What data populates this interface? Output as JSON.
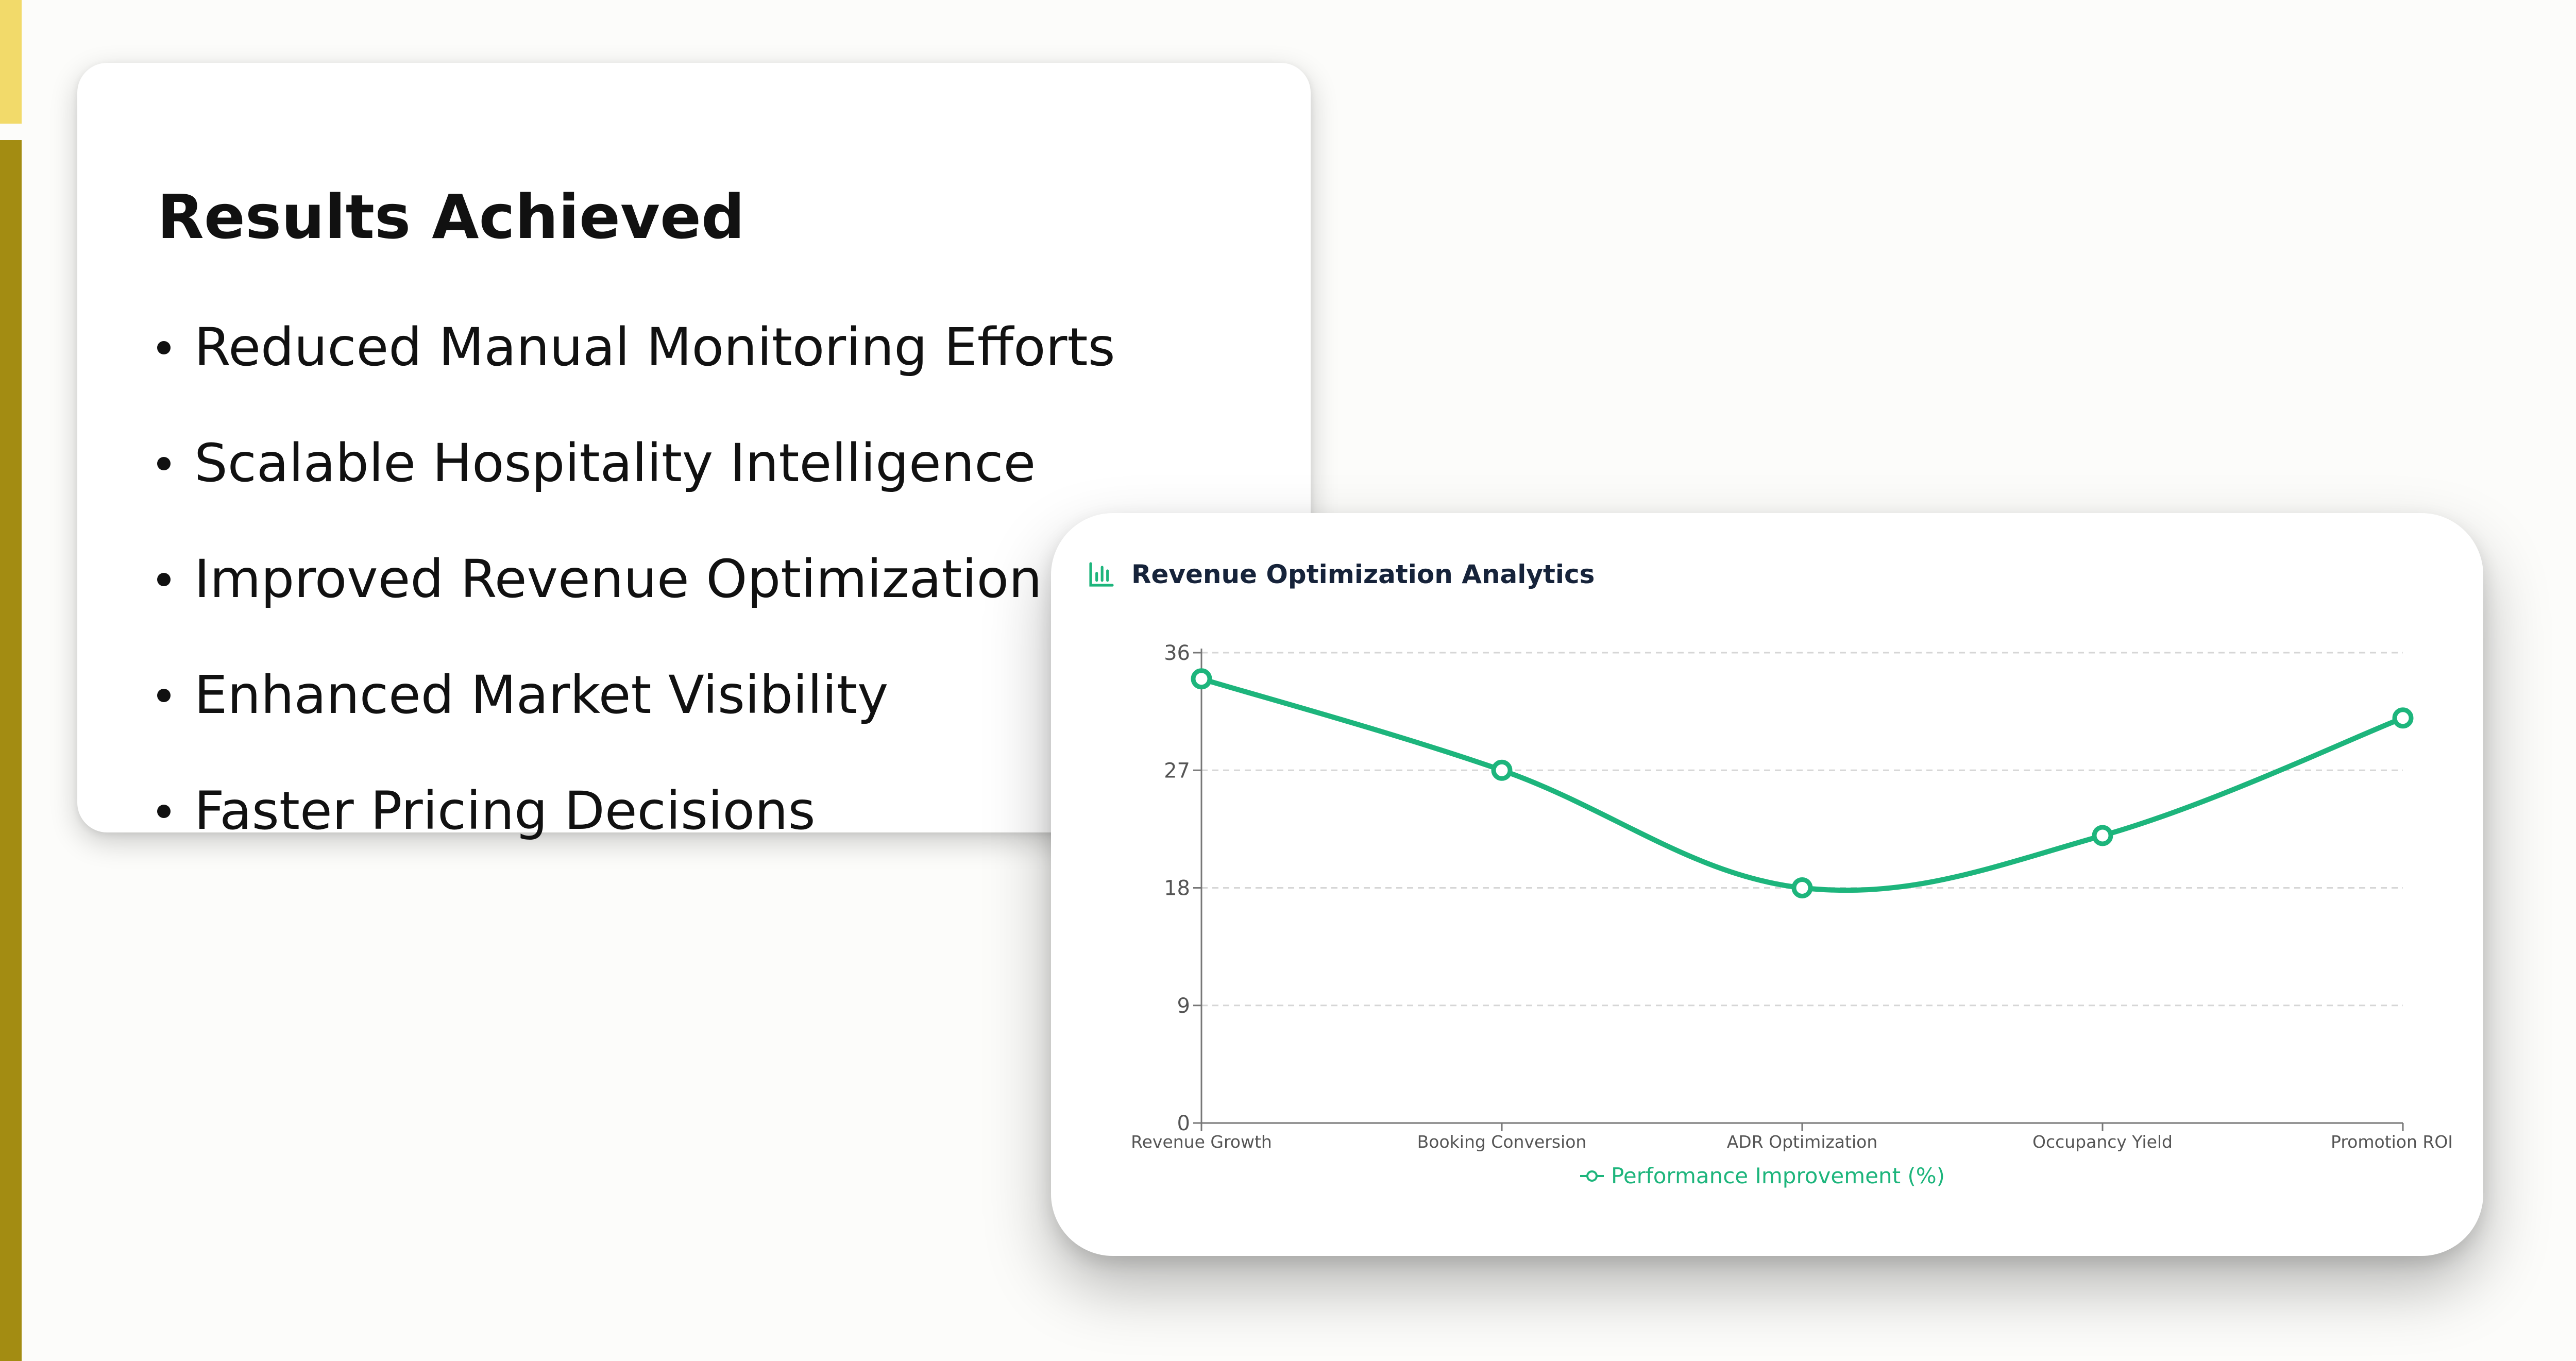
{
  "colors": {
    "accent_yellow": "#f2da6a",
    "accent_olive": "#a38c12",
    "series_green": "#1db57c",
    "title_dark": "#16233a"
  },
  "results": {
    "title": "Results Achieved",
    "items": [
      "Reduced Manual Monitoring Efforts",
      "Scalable Hospitality Intelligence",
      "Improved Revenue Optimization",
      "Enhanced Market Visibility",
      "Faster Pricing Decisions"
    ]
  },
  "chart": {
    "icon": "bar-chart-icon",
    "title": "Revenue Optimization Analytics"
  },
  "chart_data": {
    "type": "line",
    "title": "Revenue Optimization Analytics",
    "categories": [
      "Revenue Growth",
      "Booking Conversion",
      "ADR Optimization",
      "Occupancy Yield",
      "Promotion ROI"
    ],
    "series": [
      {
        "name": "Performance Improvement (%)",
        "values": [
          34,
          27,
          18,
          22,
          31
        ],
        "color": "#1db57c"
      }
    ],
    "yticks": [
      "0",
      "9",
      "18",
      "27",
      "36"
    ],
    "ylim": [
      0,
      36
    ],
    "xlabel": "",
    "ylabel": "",
    "grid": "horizontal dashed",
    "legend": "bottom-center",
    "smooth": true
  }
}
